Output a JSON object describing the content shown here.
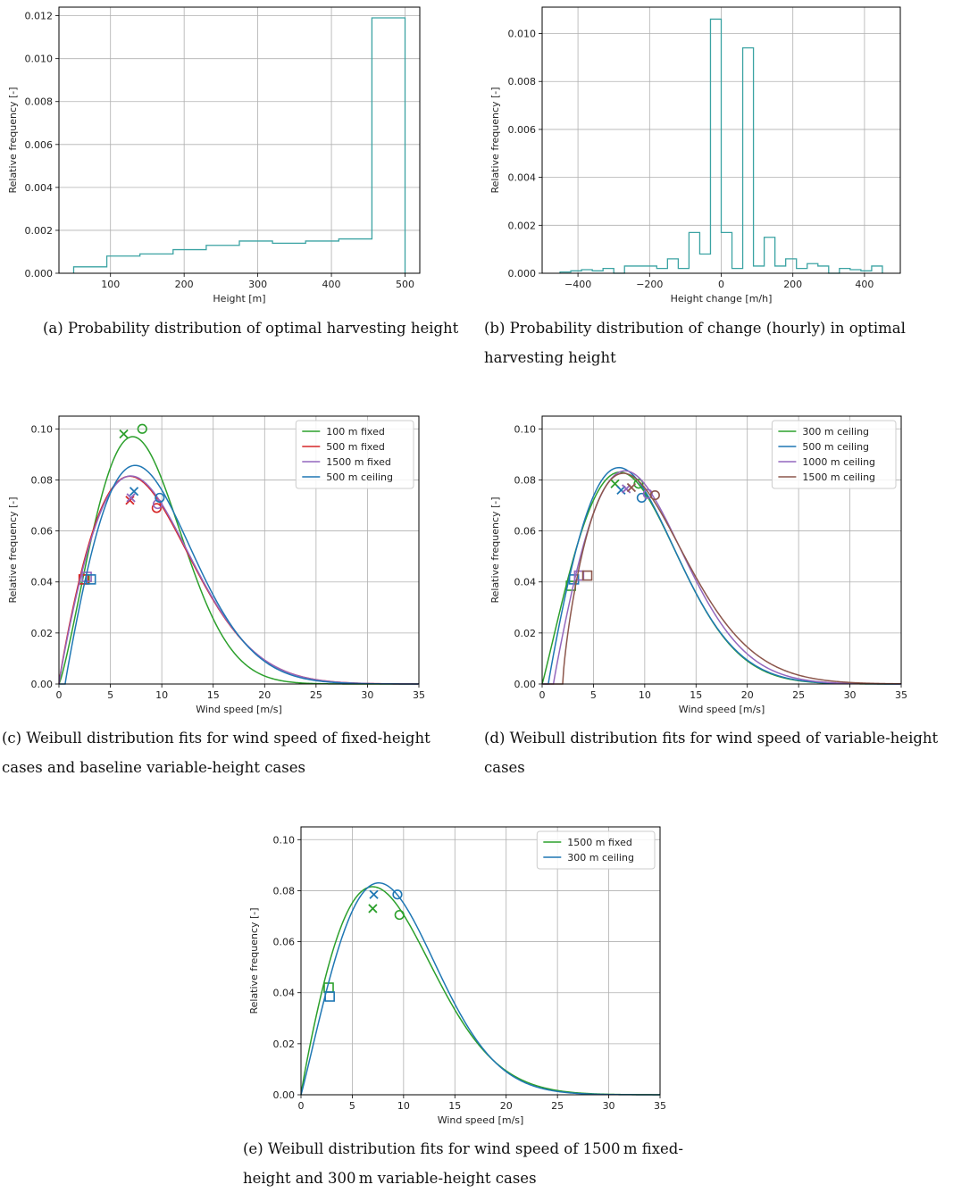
{
  "colors": {
    "teal": "#3ba3a3",
    "green": "#2ca02c",
    "red": "#d62728",
    "purple": "#9467bd",
    "blue": "#1f77b4",
    "brown": "#8c564b",
    "grid": "#b0b0b0"
  },
  "captions": {
    "a": "(a) Probability distribution of optimal harvesting height",
    "b": "(b) Probability distribution of change (hourly) in optimal harvesting height",
    "c": "(c) Weibull distribution fits for wind speed of fixed-height cases and baseline variable-height cases",
    "d": "(d) Weibull distribution fits for wind speed of variable-height cases",
    "e": "(e) Weibull distribution fits for wind speed of 1500 m fixed-height and 300 m variable-height cases"
  },
  "chart_data": [
    {
      "id": "a",
      "type": "step",
      "xlabel": "Height [m]",
      "ylabel": "Relative frequency [-]",
      "xlim": [
        30,
        520
      ],
      "ylim": [
        0,
        0.0124
      ],
      "xticks": [
        100,
        200,
        300,
        400,
        500
      ],
      "yticks": [
        0,
        0.002,
        0.004,
        0.006,
        0.008,
        0.01,
        0.012
      ],
      "ytick_labels": [
        "0.000",
        "0.002",
        "0.004",
        "0.006",
        "0.008",
        "0.010",
        "0.012"
      ],
      "edges": [
        50,
        95,
        140,
        185,
        230,
        275,
        320,
        365,
        410,
        455,
        500
      ],
      "values": [
        0.0003,
        0.0008,
        0.0009,
        0.0011,
        0.0013,
        0.0015,
        0.0014,
        0.0015,
        0.0016,
        0.0119
      ]
    },
    {
      "id": "b",
      "type": "step",
      "xlabel": "Height change [m/h]",
      "ylabel": "Relative frequency [-]",
      "xlim": [
        -500,
        500
      ],
      "ylim": [
        0,
        0.0111
      ],
      "xticks": [
        -400,
        -200,
        0,
        200,
        400
      ],
      "xtick_labels": [
        "−400",
        "−200",
        "0",
        "200",
        "400"
      ],
      "yticks": [
        0,
        0.002,
        0.004,
        0.006,
        0.008,
        0.01
      ],
      "ytick_labels": [
        "0.000",
        "0.002",
        "0.004",
        "0.006",
        "0.008",
        "0.010"
      ],
      "edges": [
        -450,
        -420,
        -390,
        -360,
        -330,
        -300,
        -270,
        -240,
        -210,
        -180,
        -150,
        -120,
        -90,
        -60,
        -30,
        0,
        30,
        60,
        90,
        120,
        150,
        180,
        210,
        240,
        270,
        300,
        330,
        360,
        390,
        420,
        450
      ],
      "values": [
        5e-05,
        0.0001,
        0.00015,
        0.0001,
        0.0002,
        0.0,
        0.0003,
        0.0003,
        0.0003,
        0.0002,
        0.0006,
        0.0002,
        0.0017,
        0.0008,
        0.0106,
        0.0017,
        0.0002,
        0.0094,
        0.0003,
        0.0015,
        0.0003,
        0.0006,
        0.0002,
        0.0004,
        0.0003,
        0.0,
        0.0002,
        0.00015,
        0.0001,
        0.0003
      ]
    },
    {
      "id": "c",
      "type": "line",
      "xlabel": "Wind speed [m/s]",
      "ylabel": "Relative frequency [-]",
      "xlim": [
        0,
        35
      ],
      "ylim": [
        0,
        0.105
      ],
      "xticks": [
        0,
        5,
        10,
        15,
        20,
        25,
        30,
        35
      ],
      "yticks": [
        0,
        0.02,
        0.04,
        0.06,
        0.08,
        0.1
      ],
      "ytick_labels": [
        "0.00",
        "0.02",
        "0.04",
        "0.06",
        "0.08",
        "0.10"
      ],
      "legend_position": "top-right",
      "series": [
        {
          "name": "100 m fixed",
          "color": "green",
          "loc": 0.0,
          "k": 2.2,
          "c": 9.45,
          "markers": {
            "square": [
              2.5,
              0.041
            ],
            "cross": [
              6.3,
              0.098
            ],
            "circle": [
              8.1,
              0.1
            ]
          }
        },
        {
          "name": "500 m fixed",
          "color": "red",
          "loc": 0.0,
          "k": 1.9,
          "c": 10.2,
          "markers": {
            "square": [
              2.4,
              0.041
            ],
            "cross": [
              6.9,
              0.072
            ],
            "circle": [
              9.5,
              0.069
            ]
          }
        },
        {
          "name": "1500 m fixed",
          "color": "purple",
          "loc": 0.0,
          "k": 1.92,
          "c": 10.25,
          "markers": {
            "square": [
              2.7,
              0.042
            ],
            "cross": [
              7.0,
              0.073
            ],
            "circle": [
              9.6,
              0.0705
            ]
          }
        },
        {
          "name": "500 m ceiling",
          "color": "blue",
          "loc": 0.6,
          "k": 1.95,
          "c": 9.85,
          "markers": {
            "square": [
              3.1,
              0.041
            ],
            "cross": [
              7.3,
              0.0755
            ],
            "circle": [
              9.8,
              0.073
            ]
          }
        }
      ]
    },
    {
      "id": "d",
      "type": "line",
      "xlabel": "Wind speed [m/s]",
      "ylabel": "Relative frequency [-]",
      "xlim": [
        0,
        35
      ],
      "ylim": [
        0,
        0.105
      ],
      "xticks": [
        0,
        5,
        10,
        15,
        20,
        25,
        30,
        35
      ],
      "yticks": [
        0,
        0.02,
        0.04,
        0.06,
        0.08,
        0.1
      ],
      "ytick_labels": [
        "0.00",
        "0.02",
        "0.04",
        "0.06",
        "0.08",
        "0.10"
      ],
      "legend_position": "top-right",
      "series": [
        {
          "name": "300 m ceiling",
          "color": "green",
          "loc": 0.0,
          "k": 2.05,
          "c": 10.5,
          "markers": {
            "square": [
              2.8,
              0.0385
            ],
            "cross": [
              7.1,
              0.0785
            ],
            "circle": [
              9.4,
              0.0785
            ]
          }
        },
        {
          "name": "500 m ceiling",
          "color": "blue",
          "loc": 0.6,
          "k": 1.95,
          "c": 9.95,
          "markers": {
            "square": [
              3.1,
              0.041
            ],
            "cross": [
              7.7,
              0.076
            ],
            "circle": [
              9.7,
              0.073
            ]
          }
        },
        {
          "name": "1000 m ceiling",
          "color": "purple",
          "loc": 1.1,
          "k": 1.95,
          "c": 10.1,
          "markers": {
            "square": [
              3.6,
              0.0425
            ],
            "cross": [
              8.2,
              0.0765
            ],
            "circle": [
              10.3,
              0.0745
            ]
          }
        },
        {
          "name": "1500 m ceiling",
          "color": "brown",
          "loc": 2.0,
          "k": 1.75,
          "c": 9.6,
          "markers": {
            "square": [
              4.4,
              0.0425
            ],
            "cross": [
              8.7,
              0.077
            ],
            "circle": [
              11.0,
              0.074
            ]
          }
        }
      ]
    },
    {
      "id": "e",
      "type": "line",
      "xlabel": "Wind speed [m/s]",
      "ylabel": "Relative frequency [-]",
      "xlim": [
        0,
        35
      ],
      "ylim": [
        0,
        0.105
      ],
      "xticks": [
        0,
        5,
        10,
        15,
        20,
        25,
        30,
        35
      ],
      "yticks": [
        0,
        0.02,
        0.04,
        0.06,
        0.08,
        0.1
      ],
      "ytick_labels": [
        "0.00",
        "0.02",
        "0.04",
        "0.06",
        "0.08",
        "0.10"
      ],
      "legend_position": "top-right",
      "series": [
        {
          "name": "1500 m fixed",
          "color": "green",
          "loc": 0.0,
          "k": 1.92,
          "c": 10.25,
          "markers": {
            "square": [
              2.7,
              0.042
            ],
            "cross": [
              7.0,
              0.073
            ],
            "circle": [
              9.6,
              0.0705
            ]
          }
        },
        {
          "name": "300 m ceiling",
          "color": "blue",
          "loc": 0.0,
          "k": 2.05,
          "c": 10.5,
          "markers": {
            "square": [
              2.8,
              0.0385
            ],
            "cross": [
              7.1,
              0.0785
            ],
            "circle": [
              9.4,
              0.0785
            ]
          }
        }
      ]
    }
  ]
}
